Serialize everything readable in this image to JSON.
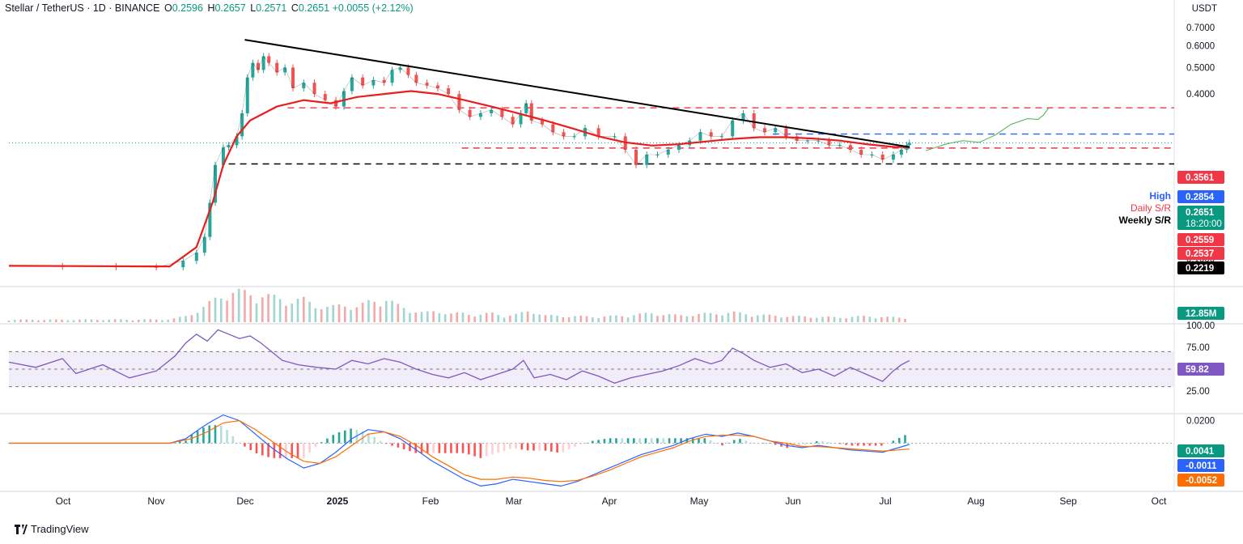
{
  "header": {
    "symbol": "Stellar / TetherUS · 1D · BINANCE",
    "o_label": "O",
    "o": "0.2596",
    "h_label": "H",
    "h": "0.2657",
    "l_label": "L",
    "l": "0.2571",
    "c_label": "C",
    "c": "0.2651",
    "change": "+0.0055 (+2.12%)"
  },
  "currency": "USDT",
  "footer": {
    "brand": "TradingView"
  },
  "colors": {
    "up": "#26a69a",
    "down": "#ef5350",
    "ema": "#e91e1e",
    "trendline": "#000000",
    "high_line": "#2962ff",
    "resistance": "#f23645",
    "projection": "#4caf50",
    "rsi": "#7e57c2",
    "macd": "#2962ff",
    "signal": "#ff6d00"
  },
  "chart_data": {
    "type": "line",
    "title": "Stellar / TetherUS · 1D · BINANCE",
    "x_months": [
      "Oct",
      "Nov",
      "Dec",
      "2025",
      "Feb",
      "Mar",
      "Apr",
      "May",
      "Jun",
      "Jul",
      "Aug",
      "Sep",
      "Oct"
    ],
    "price_axis": {
      "ticks": [
        "0.7000",
        "0.6000",
        "0.5000",
        "0.4000",
        "0.1000"
      ],
      "tick_values": [
        0.7,
        0.6,
        0.5,
        0.4,
        0.1
      ],
      "ylim": [
        0.08,
        0.72
      ]
    },
    "price_series": {
      "name": "XLM/USDT close",
      "points": [
        [
          0,
          0.0938
        ],
        [
          20,
          0.0935
        ],
        [
          40,
          0.0931
        ],
        [
          55,
          0.0929
        ],
        [
          65,
          0.098
        ],
        [
          70,
          0.105
        ],
        [
          73,
          0.12
        ],
        [
          75,
          0.16
        ],
        [
          77,
          0.22
        ],
        [
          80,
          0.255
        ],
        [
          82,
          0.26
        ],
        [
          85,
          0.28
        ],
        [
          87,
          0.34
        ],
        [
          89,
          0.46
        ],
        [
          91,
          0.52
        ],
        [
          93,
          0.49
        ],
        [
          95,
          0.55
        ],
        [
          97,
          0.52
        ],
        [
          100,
          0.48
        ],
        [
          103,
          0.5
        ],
        [
          106,
          0.42
        ],
        [
          110,
          0.44
        ],
        [
          114,
          0.4
        ],
        [
          118,
          0.38
        ],
        [
          122,
          0.36
        ],
        [
          125,
          0.41
        ],
        [
          128,
          0.46
        ],
        [
          132,
          0.43
        ],
        [
          136,
          0.45
        ],
        [
          140,
          0.44
        ],
        [
          143,
          0.49
        ],
        [
          146,
          0.5
        ],
        [
          149,
          0.47
        ],
        [
          152,
          0.44
        ],
        [
          156,
          0.43
        ],
        [
          160,
          0.42
        ],
        [
          164,
          0.4
        ],
        [
          168,
          0.35
        ],
        [
          172,
          0.33
        ],
        [
          176,
          0.34
        ],
        [
          180,
          0.35
        ],
        [
          184,
          0.33
        ],
        [
          188,
          0.31
        ],
        [
          191,
          0.34
        ],
        [
          193,
          0.37
        ],
        [
          195,
          0.32
        ],
        [
          199,
          0.31
        ],
        [
          203,
          0.29
        ],
        [
          207,
          0.28
        ],
        [
          211,
          0.28
        ],
        [
          215,
          0.3
        ],
        [
          220,
          0.28
        ],
        [
          226,
          0.28
        ],
        [
          230,
          0.25
        ],
        [
          234,
          0.22
        ],
        [
          238,
          0.24
        ],
        [
          242,
          0.24
        ],
        [
          246,
          0.25
        ],
        [
          250,
          0.26
        ],
        [
          254,
          0.27
        ],
        [
          258,
          0.29
        ],
        [
          262,
          0.28
        ],
        [
          266,
          0.28
        ],
        [
          270,
          0.32
        ],
        [
          274,
          0.34
        ],
        [
          278,
          0.3
        ],
        [
          282,
          0.29
        ],
        [
          286,
          0.3
        ],
        [
          290,
          0.28
        ],
        [
          294,
          0.27
        ],
        [
          298,
          0.27
        ],
        [
          302,
          0.27
        ],
        [
          306,
          0.26
        ],
        [
          310,
          0.26
        ],
        [
          314,
          0.25
        ],
        [
          318,
          0.24
        ],
        [
          322,
          0.24
        ],
        [
          326,
          0.23
        ],
        [
          330,
          0.24
        ],
        [
          333,
          0.25
        ],
        [
          335,
          0.26
        ],
        [
          336,
          0.2651
        ]
      ]
    },
    "ema_series": {
      "name": "EMA",
      "points": [
        [
          0,
          0.094
        ],
        [
          60,
          0.0935
        ],
        [
          70,
          0.11
        ],
        [
          76,
          0.16
        ],
        [
          80,
          0.22
        ],
        [
          85,
          0.28
        ],
        [
          90,
          0.32
        ],
        [
          100,
          0.36
        ],
        [
          110,
          0.38
        ],
        [
          120,
          0.37
        ],
        [
          130,
          0.39
        ],
        [
          140,
          0.4
        ],
        [
          150,
          0.41
        ],
        [
          160,
          0.4
        ],
        [
          170,
          0.38
        ],
        [
          180,
          0.36
        ],
        [
          190,
          0.34
        ],
        [
          200,
          0.32
        ],
        [
          210,
          0.3
        ],
        [
          220,
          0.28
        ],
        [
          230,
          0.266
        ],
        [
          240,
          0.259
        ],
        [
          250,
          0.262
        ],
        [
          260,
          0.268
        ],
        [
          270,
          0.274
        ],
        [
          280,
          0.278
        ],
        [
          290,
          0.278
        ],
        [
          300,
          0.275
        ],
        [
          310,
          0.27
        ],
        [
          320,
          0.262
        ],
        [
          330,
          0.256
        ],
        [
          336,
          0.2559
        ]
      ]
    },
    "projection_series": {
      "name": "projection",
      "points": [
        [
          342,
          0.248
        ],
        [
          350,
          0.263
        ],
        [
          356,
          0.27
        ],
        [
          362,
          0.266
        ],
        [
          368,
          0.283
        ],
        [
          374,
          0.31
        ],
        [
          380,
          0.325
        ],
        [
          384,
          0.323
        ],
        [
          386,
          0.335
        ],
        [
          388,
          0.356
        ]
      ]
    },
    "levels": [
      {
        "label": "0.3561",
        "value": 0.3561,
        "style": "dashed",
        "color": "#f23645"
      },
      {
        "label": "High",
        "value": 0.2854,
        "style": "dashed",
        "color": "#2962ff",
        "tag": "0.2854"
      },
      {
        "label": "Daily S/R",
        "value": 0.2537,
        "style": "dashed",
        "color": "#f23645",
        "tag": "0.2537"
      },
      {
        "label": "Weekly S/R",
        "value": 0.2219,
        "style": "dashed",
        "color": "#000000",
        "tag": "0.2219"
      }
    ],
    "trendline": [
      [
        88,
        0.632
      ],
      [
        336,
        0.2559
      ]
    ],
    "price_tags": [
      {
        "value": "0.3561",
        "color": "#f23645"
      },
      {
        "value": "0.2854",
        "color": "#2962ff"
      },
      {
        "value": "0.2651",
        "color": "#089981",
        "sub": "18:20:00"
      },
      {
        "value": "0.2559",
        "color": "#f23645"
      },
      {
        "value": "0.2537",
        "color": "#f23645"
      },
      {
        "value": "0.2219",
        "color": "#000000"
      }
    ],
    "volume": {
      "label": "12.85M",
      "points": [
        [
          0,
          8
        ],
        [
          60,
          9
        ],
        [
          66,
          20
        ],
        [
          72,
          45
        ],
        [
          76,
          70
        ],
        [
          80,
          95
        ],
        [
          85,
          100
        ],
        [
          90,
          96
        ],
        [
          95,
          88
        ],
        [
          100,
          80
        ],
        [
          105,
          70
        ],
        [
          110,
          75
        ],
        [
          115,
          55
        ],
        [
          120,
          48
        ],
        [
          125,
          60
        ],
        [
          130,
          50
        ],
        [
          135,
          70
        ],
        [
          140,
          80
        ],
        [
          145,
          55
        ],
        [
          150,
          40
        ],
        [
          155,
          30
        ],
        [
          160,
          38
        ],
        [
          165,
          28
        ],
        [
          170,
          30
        ],
        [
          175,
          24
        ],
        [
          180,
          30
        ],
        [
          185,
          22
        ],
        [
          190,
          26
        ],
        [
          195,
          40
        ],
        [
          200,
          22
        ],
        [
          210,
          20
        ],
        [
          220,
          18
        ],
        [
          230,
          22
        ],
        [
          240,
          30
        ],
        [
          250,
          22
        ],
        [
          260,
          28
        ],
        [
          270,
          32
        ],
        [
          280,
          24
        ],
        [
          290,
          20
        ],
        [
          300,
          18
        ],
        [
          310,
          16
        ],
        [
          320,
          20
        ],
        [
          330,
          16
        ],
        [
          336,
          14
        ]
      ]
    },
    "rsi": {
      "label": "59.82",
      "ticks": [
        "100.00",
        "75.00",
        "50.00",
        "25.00"
      ],
      "tick_values": [
        100,
        75,
        50,
        25
      ],
      "bands": [
        70,
        50,
        30
      ],
      "points": [
        [
          0,
          58
        ],
        [
          10,
          52
        ],
        [
          20,
          62
        ],
        [
          25,
          45
        ],
        [
          35,
          55
        ],
        [
          45,
          40
        ],
        [
          55,
          48
        ],
        [
          62,
          65
        ],
        [
          66,
          80
        ],
        [
          70,
          90
        ],
        [
          74,
          82
        ],
        [
          78,
          95
        ],
        [
          82,
          90
        ],
        [
          86,
          85
        ],
        [
          90,
          88
        ],
        [
          94,
          80
        ],
        [
          98,
          70
        ],
        [
          102,
          60
        ],
        [
          108,
          55
        ],
        [
          115,
          52
        ],
        [
          122,
          50
        ],
        [
          128,
          60
        ],
        [
          134,
          56
        ],
        [
          140,
          62
        ],
        [
          146,
          58
        ],
        [
          152,
          50
        ],
        [
          158,
          44
        ],
        [
          164,
          40
        ],
        [
          170,
          46
        ],
        [
          176,
          38
        ],
        [
          182,
          44
        ],
        [
          188,
          50
        ],
        [
          192,
          60
        ],
        [
          196,
          40
        ],
        [
          202,
          44
        ],
        [
          208,
          38
        ],
        [
          214,
          48
        ],
        [
          220,
          42
        ],
        [
          226,
          34
        ],
        [
          232,
          40
        ],
        [
          238,
          44
        ],
        [
          244,
          48
        ],
        [
          250,
          54
        ],
        [
          256,
          62
        ],
        [
          262,
          56
        ],
        [
          266,
          60
        ],
        [
          270,
          74
        ],
        [
          274,
          68
        ],
        [
          278,
          60
        ],
        [
          284,
          52
        ],
        [
          290,
          56
        ],
        [
          296,
          46
        ],
        [
          302,
          50
        ],
        [
          308,
          42
        ],
        [
          314,
          52
        ],
        [
          320,
          44
        ],
        [
          326,
          36
        ],
        [
          330,
          48
        ],
        [
          333,
          55
        ],
        [
          336,
          59.82
        ]
      ]
    },
    "macd": {
      "ticks": [
        "0.0200"
      ],
      "tick_values": [
        0.02
      ],
      "labels": [
        {
          "value": "0.0041",
          "color": "#089981"
        },
        {
          "value": "-0.0011",
          "color": "#2962ff"
        },
        {
          "value": "-0.0052",
          "color": "#ff6d00"
        }
      ],
      "ylim": [
        -0.042,
        0.024
      ],
      "macd_line": [
        [
          0,
          0
        ],
        [
          60,
          0
        ],
        [
          66,
          0.004
        ],
        [
          72,
          0.014
        ],
        [
          76,
          0.02
        ],
        [
          80,
          0.025
        ],
        [
          86,
          0.02
        ],
        [
          92,
          0.008
        ],
        [
          98,
          -0.004
        ],
        [
          104,
          -0.014
        ],
        [
          110,
          -0.022
        ],
        [
          116,
          -0.018
        ],
        [
          122,
          -0.008
        ],
        [
          128,
          0.004
        ],
        [
          134,
          0.012
        ],
        [
          140,
          0.01
        ],
        [
          146,
          0.004
        ],
        [
          152,
          -0.006
        ],
        [
          158,
          -0.016
        ],
        [
          164,
          -0.024
        ],
        [
          170,
          -0.032
        ],
        [
          176,
          -0.038
        ],
        [
          182,
          -0.036
        ],
        [
          188,
          -0.032
        ],
        [
          194,
          -0.034
        ],
        [
          200,
          -0.036
        ],
        [
          206,
          -0.038
        ],
        [
          212,
          -0.034
        ],
        [
          218,
          -0.028
        ],
        [
          224,
          -0.022
        ],
        [
          230,
          -0.016
        ],
        [
          236,
          -0.01
        ],
        [
          242,
          -0.006
        ],
        [
          248,
          -0.002
        ],
        [
          254,
          0.004
        ],
        [
          260,
          0.008
        ],
        [
          266,
          0.006
        ],
        [
          272,
          0.009
        ],
        [
          278,
          0.006
        ],
        [
          284,
          0.002
        ],
        [
          290,
          -0.002
        ],
        [
          296,
          -0.004
        ],
        [
          302,
          -0.002
        ],
        [
          308,
          -0.004
        ],
        [
          314,
          -0.006
        ],
        [
          320,
          -0.007
        ],
        [
          326,
          -0.008
        ],
        [
          332,
          -0.004
        ],
        [
          336,
          -0.0011
        ]
      ],
      "signal_line": [
        [
          0,
          0
        ],
        [
          60,
          0
        ],
        [
          68,
          0.004
        ],
        [
          74,
          0.01
        ],
        [
          80,
          0.018
        ],
        [
          86,
          0.02
        ],
        [
          92,
          0.012
        ],
        [
          98,
          0.002
        ],
        [
          104,
          -0.008
        ],
        [
          110,
          -0.016
        ],
        [
          116,
          -0.018
        ],
        [
          122,
          -0.012
        ],
        [
          128,
          -0.002
        ],
        [
          134,
          0.008
        ],
        [
          140,
          0.01
        ],
        [
          146,
          0.006
        ],
        [
          152,
          -0.002
        ],
        [
          158,
          -0.012
        ],
        [
          164,
          -0.02
        ],
        [
          170,
          -0.028
        ],
        [
          176,
          -0.032
        ],
        [
          182,
          -0.032
        ],
        [
          188,
          -0.03
        ],
        [
          194,
          -0.031
        ],
        [
          200,
          -0.033
        ],
        [
          206,
          -0.034
        ],
        [
          212,
          -0.033
        ],
        [
          218,
          -0.029
        ],
        [
          224,
          -0.024
        ],
        [
          230,
          -0.018
        ],
        [
          236,
          -0.012
        ],
        [
          242,
          -0.008
        ],
        [
          248,
          -0.004
        ],
        [
          254,
          0.002
        ],
        [
          260,
          0.006
        ],
        [
          266,
          0.007
        ],
        [
          272,
          0.007
        ],
        [
          278,
          0.006
        ],
        [
          284,
          0.002
        ],
        [
          290,
          0
        ],
        [
          296,
          -0.003
        ],
        [
          302,
          -0.003
        ],
        [
          308,
          -0.004
        ],
        [
          314,
          -0.005
        ],
        [
          320,
          -0.006
        ],
        [
          326,
          -0.007
        ],
        [
          332,
          -0.006
        ],
        [
          336,
          -0.0052
        ]
      ]
    }
  }
}
